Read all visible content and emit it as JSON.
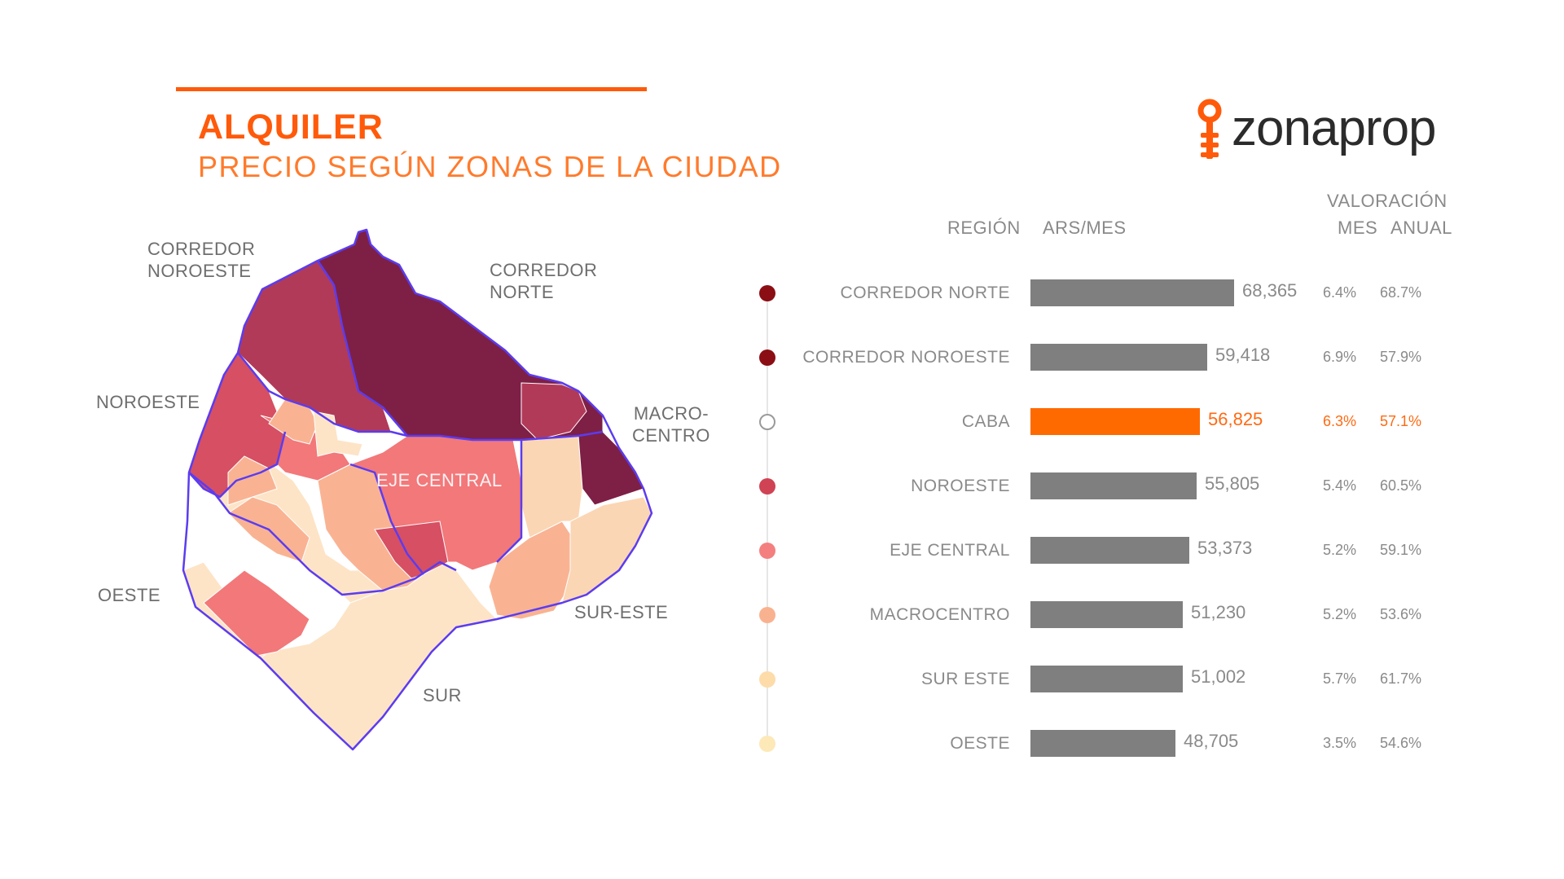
{
  "header": {
    "title": "ALQUILER",
    "subtitle": "PRECIO SEGÚN ZONAS DE LA CIUDAD",
    "accent_color": "#ff5a0a",
    "subtitle_color": "#ff7b2c"
  },
  "logo": {
    "text": "zonaprop",
    "icon": "key-pin-icon",
    "color": "#ff5a0a"
  },
  "map_labels": {
    "corredor_noroeste": [
      "CORREDOR",
      "NOROESTE"
    ],
    "corredor_norte": [
      "CORREDOR",
      "NORTE"
    ],
    "noroeste": "NOROESTE",
    "macrocentro": [
      "MACRO-",
      "CENTRO"
    ],
    "eje_central": "EJE CENTRAL",
    "oeste": "OESTE",
    "sur_este": "SUR-ESTE",
    "sur": "SUR"
  },
  "map_colors": {
    "corredor_norte": "#7e1f45",
    "corredor_noroeste": "#b13a58",
    "noroeste": "#d64f63",
    "eje_central": "#f2787a",
    "macrocentro": "#f9b393",
    "sur_este": "#fbd6b4",
    "oeste": "#fde4c7",
    "border": "#5b3cf0"
  },
  "table": {
    "header_region": "REGIÓN",
    "header_ars": "ARS/MES",
    "header_valoracion": "VALORACIÓN",
    "header_mes": "MES",
    "header_anual": "ANUAL"
  },
  "chart_data": {
    "type": "bar",
    "orientation": "horizontal",
    "categories": [
      "CORREDOR NORTE",
      "CORREDOR NOROESTE",
      "CABA",
      "NOROESTE",
      "EJE CENTRAL",
      "MACROCENTRO",
      "SUR ESTE",
      "OESTE"
    ],
    "values": [
      68365,
      59418,
      56825,
      55805,
      53373,
      51230,
      51002,
      48705
    ],
    "value_labels": [
      "68,365",
      "59,418",
      "56,825",
      "55,805",
      "53,373",
      "51,230",
      "51,002",
      "48,705"
    ],
    "valoracion_mes": [
      "6.4%",
      "6.9%",
      "6.3%",
      "5.4%",
      "5.2%",
      "5.2%",
      "5.7%",
      "3.5%"
    ],
    "valoracion_anual": [
      "68.7%",
      "57.9%",
      "57.1%",
      "60.5%",
      "59.1%",
      "53.6%",
      "61.7%",
      "54.6%"
    ],
    "dot_colors": [
      "#8b0e14",
      "#8b0e14",
      "#ffffff",
      "#cf4354",
      "#f47f7f",
      "#f9b28f",
      "#fddcaa",
      "#fde8b8"
    ],
    "highlight_index": 2,
    "bar_color": "#7f7f7f",
    "highlight_color": "#ff6a00"
  }
}
